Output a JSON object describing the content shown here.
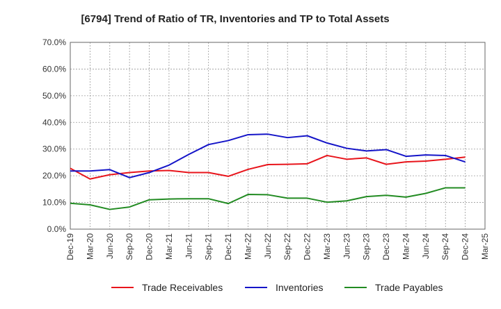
{
  "chart_data": {
    "type": "line",
    "title": "[6794]  Trend of Ratio of TR, Inventories and TP to Total Assets",
    "xlabel": "",
    "ylabel": "",
    "x": [
      "Dec-19",
      "Mar-20",
      "Jun-20",
      "Sep-20",
      "Dec-20",
      "Mar-21",
      "Jun-21",
      "Sep-21",
      "Dec-21",
      "Mar-22",
      "Jun-22",
      "Sep-22",
      "Dec-22",
      "Mar-23",
      "Jun-23",
      "Sep-23",
      "Dec-23",
      "Mar-24",
      "Jun-24",
      "Sep-24",
      "Dec-24",
      "Mar-25"
    ],
    "ylim": [
      0,
      70
    ],
    "yticks": [
      0,
      10,
      20,
      30,
      40,
      50,
      60,
      70
    ],
    "ytick_labels": [
      "0.0%",
      "10.0%",
      "20.0%",
      "30.0%",
      "40.0%",
      "50.0%",
      "60.0%",
      "70.0%"
    ],
    "grid": true,
    "legend_position": "bottom",
    "series": [
      {
        "name": "Trade Receivables",
        "color": "#e8141b",
        "values": [
          22.8,
          18.8,
          20.4,
          21.2,
          21.8,
          22.0,
          21.2,
          21.2,
          19.8,
          22.4,
          24.2,
          24.3,
          24.5,
          27.6,
          26.2,
          26.7,
          24.3,
          25.2,
          25.5,
          26.2,
          27.0,
          null
        ]
      },
      {
        "name": "Inventories",
        "color": "#1414c8",
        "values": [
          21.8,
          21.8,
          22.3,
          19.3,
          21.2,
          24.0,
          28.0,
          31.7,
          33.2,
          35.4,
          35.6,
          34.3,
          35.0,
          32.3,
          30.3,
          29.3,
          29.8,
          27.3,
          27.8,
          27.6,
          25.2,
          null
        ]
      },
      {
        "name": "Trade Payables",
        "color": "#228b22",
        "values": [
          9.7,
          9.1,
          7.4,
          8.3,
          11.0,
          11.3,
          11.4,
          11.4,
          9.6,
          13.0,
          12.9,
          11.6,
          11.6,
          10.1,
          10.6,
          12.2,
          12.7,
          12.0,
          13.4,
          15.5,
          15.5,
          null
        ]
      }
    ]
  }
}
